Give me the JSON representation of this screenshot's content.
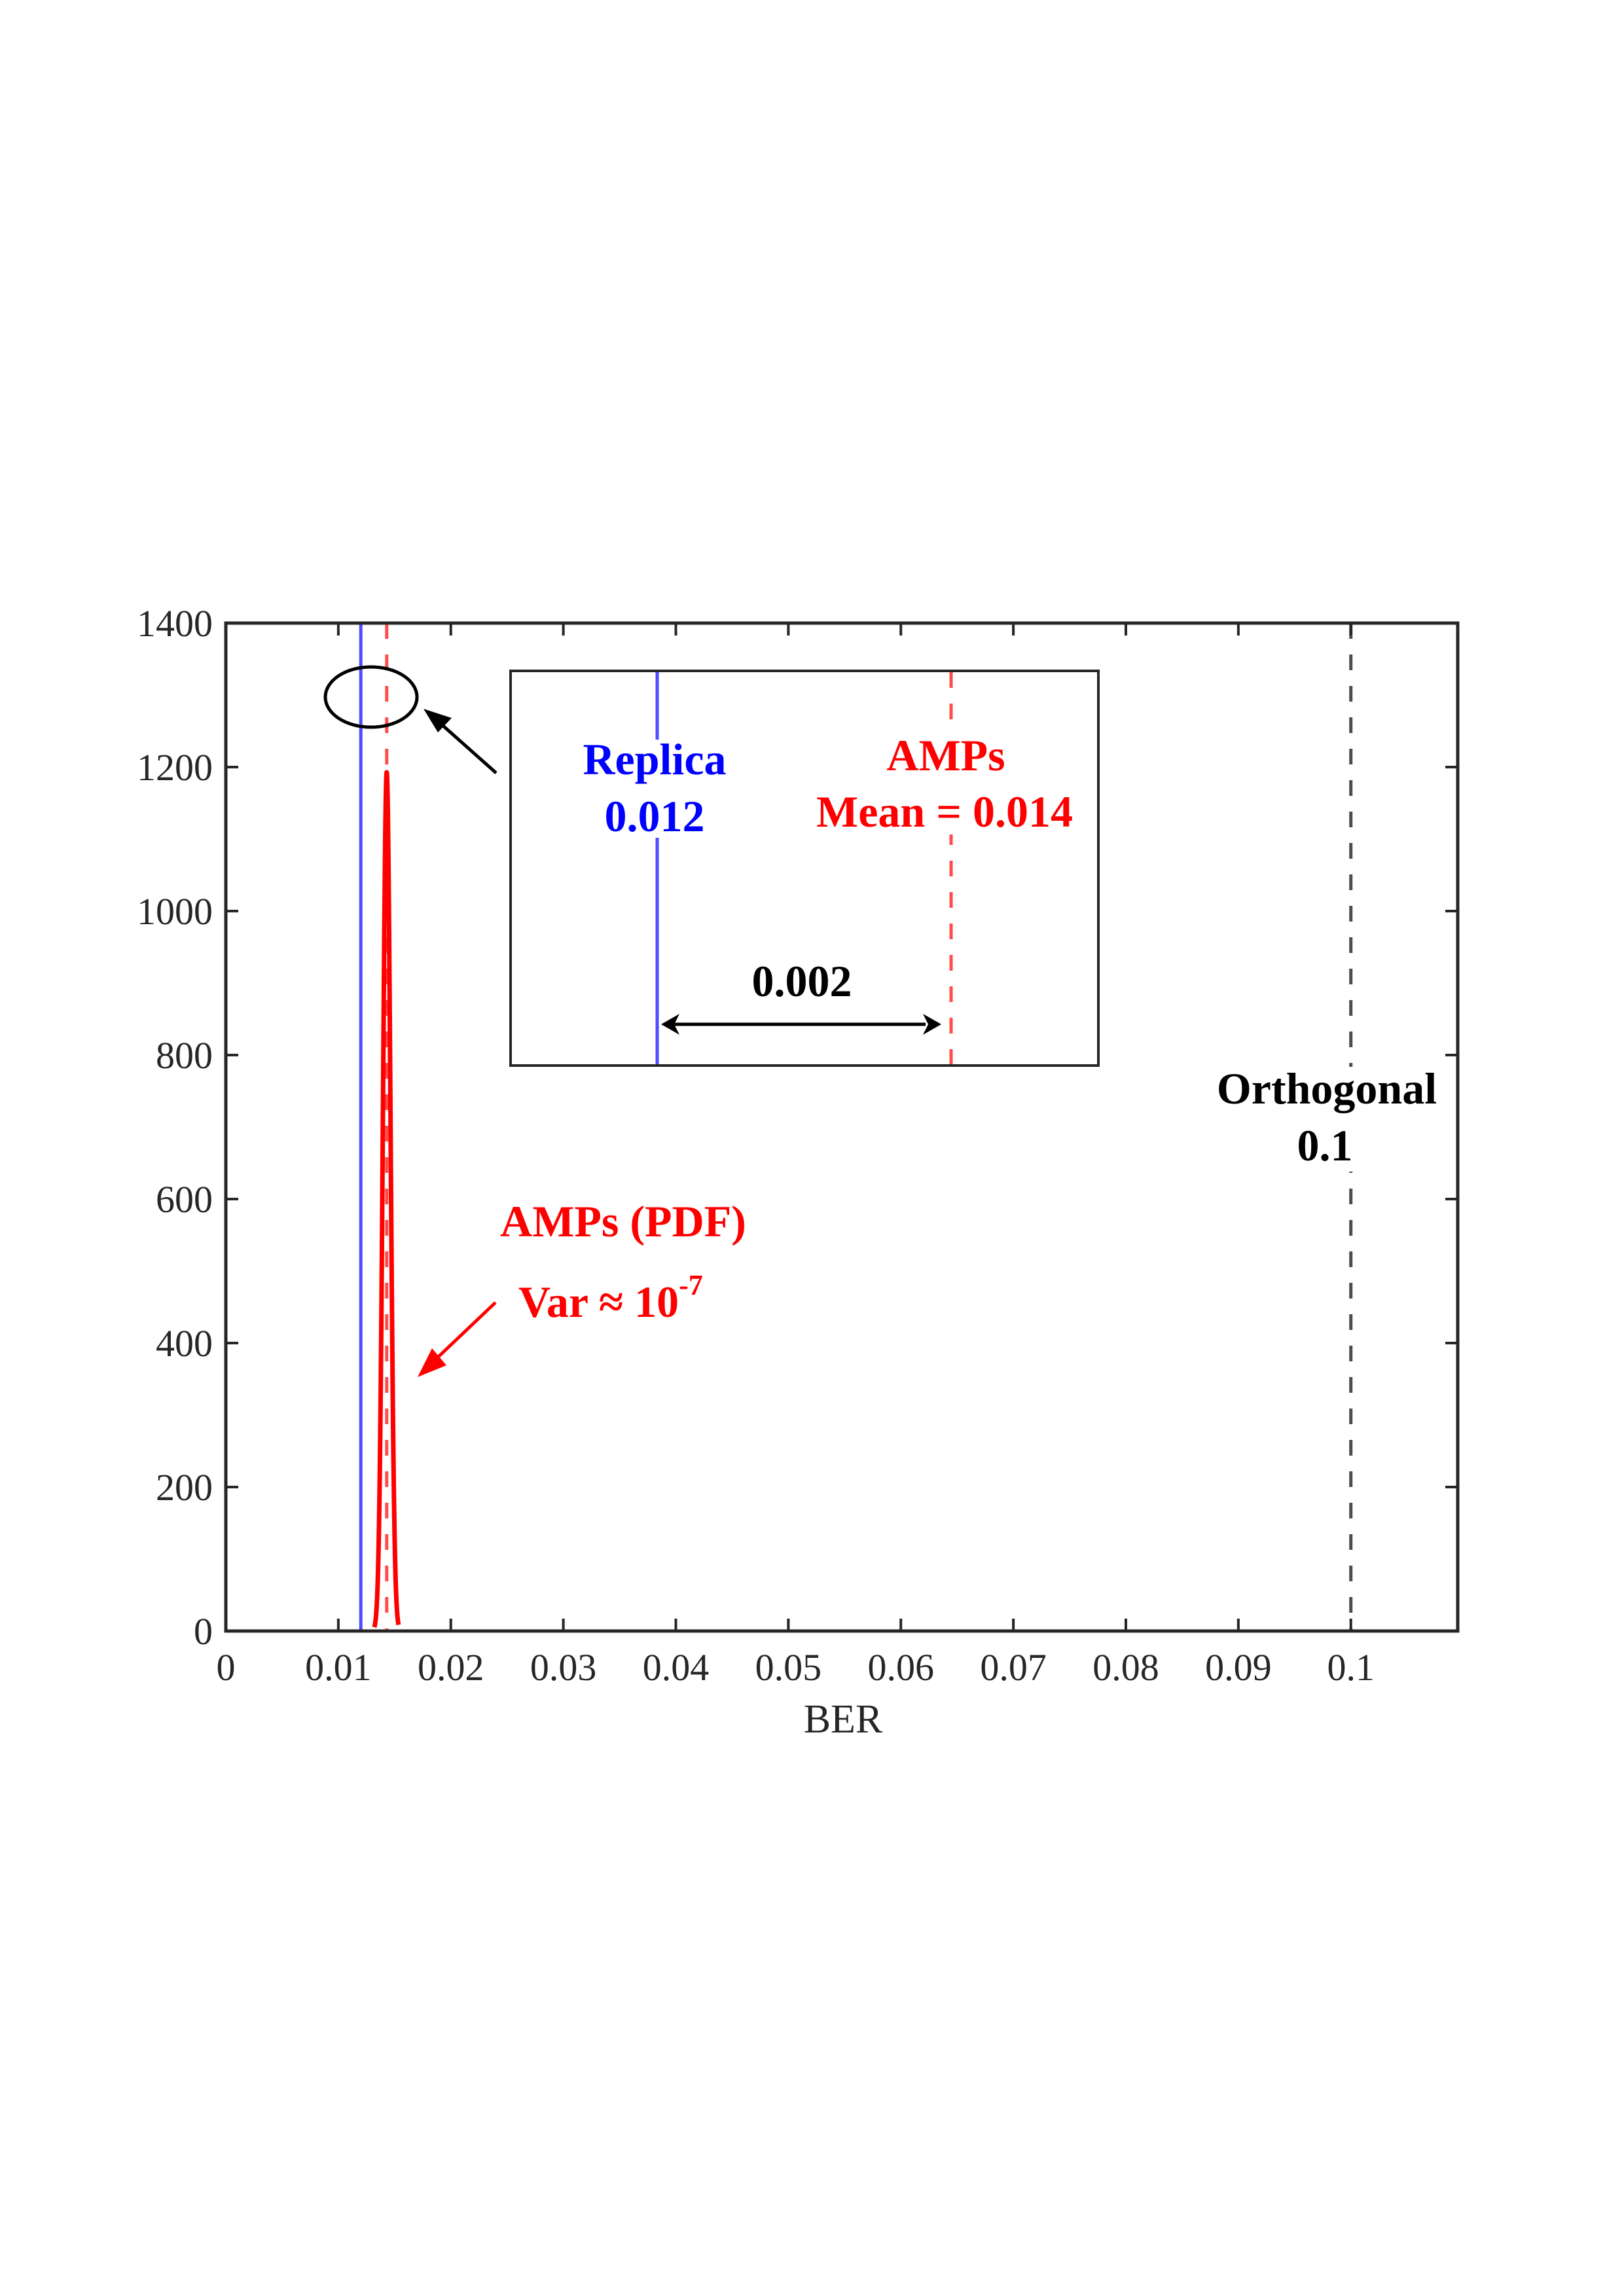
{
  "chart_data": {
    "type": "line",
    "title": "",
    "xlabel": "BER",
    "ylabel": "",
    "xlim": [
      0,
      0.1095
    ],
    "ylim": [
      0,
      1400
    ],
    "grid": false,
    "xticks": [
      "0",
      "0.01",
      "0.02",
      "0.03",
      "0.04",
      "0.05",
      "0.06",
      "0.07",
      "0.08",
      "0.09",
      "0.1"
    ],
    "xtick_values": [
      0,
      0.01,
      0.02,
      0.03,
      0.04,
      0.05,
      0.06,
      0.07,
      0.08,
      0.09,
      0.1
    ],
    "yticks": [
      "0",
      "200",
      "400",
      "600",
      "800",
      "1000",
      "1200",
      "1400"
    ],
    "ytick_values": [
      0,
      200,
      400,
      600,
      800,
      1000,
      1200,
      1400
    ],
    "series": [
      {
        "name": "AMPs (PDF)",
        "style": "solid",
        "color": "#ff0000",
        "x": [
          0.0132,
          0.0134,
          0.0136,
          0.0138,
          0.014,
          0.0141,
          0.0142,
          0.0143,
          0.0144,
          0.0145,
          0.0146,
          0.0148,
          0.015,
          0.0152,
          0.01535
        ],
        "y": [
          5,
          16,
          50,
          119,
          244,
          359,
          560,
          1193,
          560,
          359,
          244,
          119,
          50,
          16,
          5
        ]
      }
    ],
    "vertical_lines": [
      {
        "name": "Replica",
        "x": 0.012,
        "style": "solid",
        "color": "#4d4dff"
      },
      {
        "name": "AMPs Mean",
        "x": 0.0143,
        "style": "dashed",
        "color": "#ff4d4d"
      },
      {
        "name": "Orthogonal",
        "x": 0.1,
        "style": "dashed",
        "color": "#4d4d4d"
      }
    ],
    "annotations": [
      {
        "text": "Replica",
        "color": "#0000ff"
      },
      {
        "text": "0.012",
        "color": "#0000ff"
      },
      {
        "text": "AMPs",
        "color": "#ff0000"
      },
      {
        "text": "Mean = 0.014",
        "color": "#ff0000"
      },
      {
        "text": "0.002",
        "color": "#000000"
      },
      {
        "text": "Orthogonal",
        "color": "#000000"
      },
      {
        "text": "0.1",
        "color": "#000000"
      },
      {
        "text": "AMPs (PDF)",
        "color": "#ff0000"
      },
      {
        "text": "Var ≈ 10-7",
        "color": "#ff0000"
      }
    ],
    "inset": {
      "description": "zoom of circled region",
      "replica": 0.012,
      "amps_mean": 0.014,
      "gap": 0.002
    }
  },
  "labels": {
    "xlabel": "BER",
    "inset_replica_title": "Replica",
    "inset_replica_value": "0.012",
    "inset_amps_title": "AMPs",
    "inset_amps_mean": "Mean = 0.014",
    "inset_gap": "0.002",
    "orthogonal_title": "Orthogonal",
    "orthogonal_value": "0.1",
    "pdf_title": "AMPs (PDF)",
    "pdf_var_prefix": "Var ≈ 10",
    "pdf_var_exponent": "-7"
  },
  "colors": {
    "axis": "#262626",
    "replica_line": "#4d4dff",
    "amps_line": "#ff4d4d",
    "pdf_curve": "#ff0000",
    "orthogonal_line": "#4d4d4d",
    "replica_text": "#0000ff",
    "amps_text": "#ff0000"
  }
}
